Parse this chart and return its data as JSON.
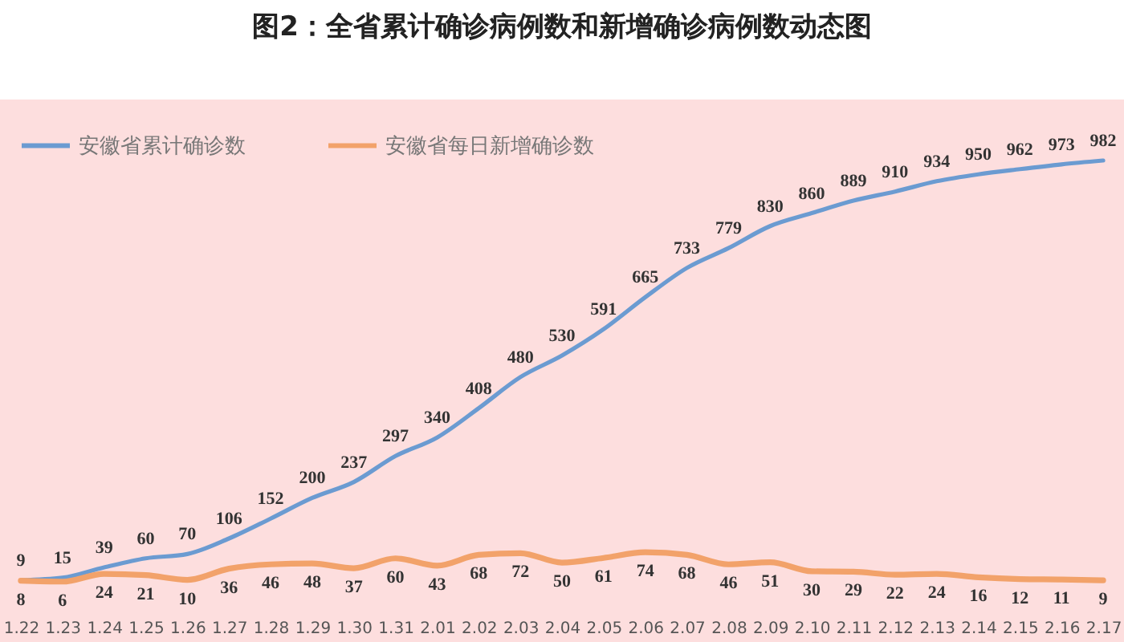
{
  "chart_data": {
    "type": "line",
    "title": "图2：全省累计确诊病例数和新增确诊病例数动态图",
    "categories": [
      "1.22",
      "1.23",
      "1.24",
      "1.25",
      "1.26",
      "1.27",
      "1.28",
      "1.29",
      "1.30",
      "1.31",
      "2.01",
      "2.02",
      "2.03",
      "2.04",
      "2.05",
      "2.06",
      "2.07",
      "2.08",
      "2.09",
      "2.10",
      "2.11",
      "2.12",
      "2.13",
      "2.14",
      "2.15",
      "2.16",
      "2.17"
    ],
    "series": [
      {
        "name": "安徽省累计确诊数",
        "color": "#6b9bd1",
        "values": [
          9,
          15,
          39,
          60,
          70,
          106,
          152,
          200,
          237,
          297,
          340,
          408,
          480,
          530,
          591,
          665,
          733,
          779,
          830,
          860,
          889,
          910,
          934,
          950,
          962,
          973,
          982
        ]
      },
      {
        "name": "安徽省每日新增确诊数",
        "color": "#f2a26a",
        "values": [
          8,
          6,
          24,
          21,
          10,
          36,
          46,
          48,
          37,
          60,
          43,
          68,
          72,
          50,
          61,
          74,
          68,
          46,
          51,
          30,
          29,
          22,
          24,
          16,
          12,
          11,
          9
        ]
      }
    ],
    "data_labels": true,
    "legend": "top left",
    "tick_labels": "x"
  }
}
